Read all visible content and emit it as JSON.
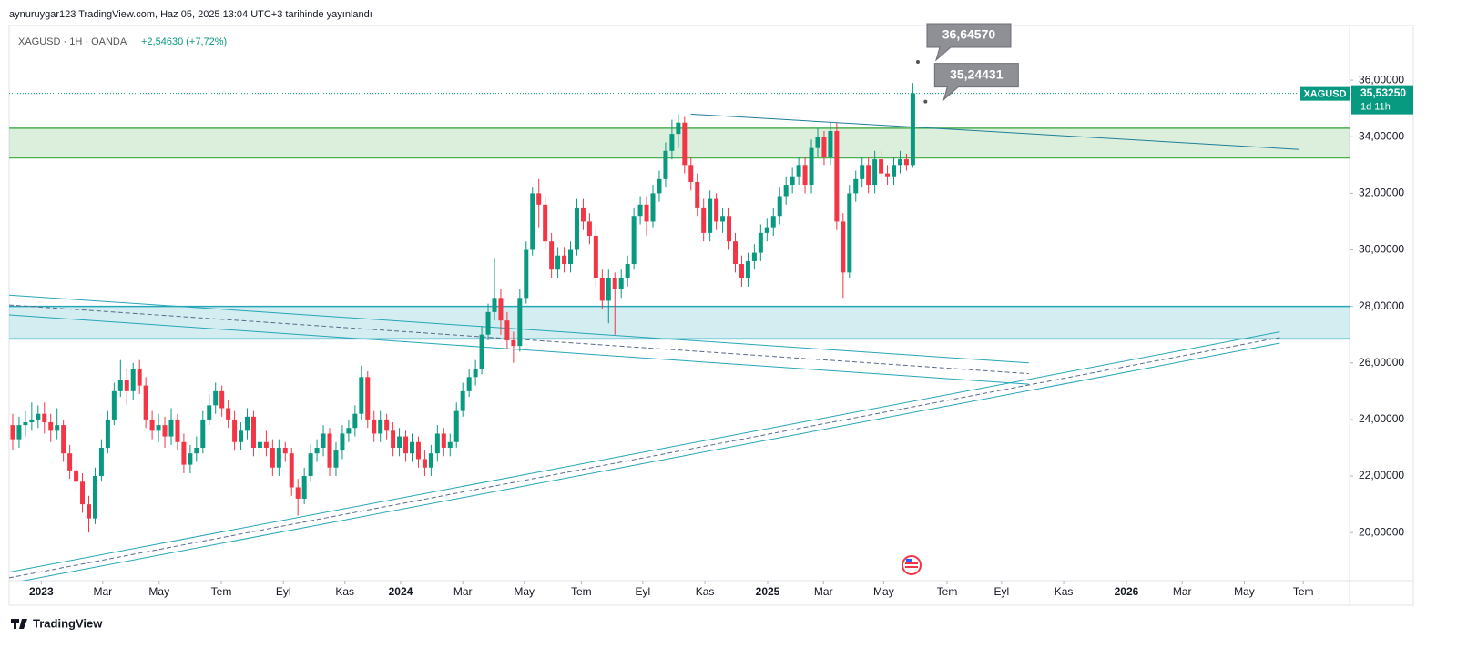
{
  "header": {
    "text": "aynuruygar123 TradingView.com, Haz 05, 2025 13:04 UTC+3 tarihinde yayınlandı"
  },
  "chart_data": {
    "type": "candlestick",
    "symbol": "XAGUSD · 1H · OANDA",
    "change": "+2,54630 (+7,72%)",
    "up_color": "#089981",
    "down_color": "#f23645",
    "candles": [
      [
        23.8,
        24.2,
        22.9,
        23.3
      ],
      [
        23.3,
        24.1,
        23.0,
        23.8
      ],
      [
        23.8,
        24.3,
        23.4,
        23.9
      ],
      [
        23.9,
        24.6,
        23.6,
        24.0
      ],
      [
        24.0,
        24.5,
        23.7,
        24.2
      ],
      [
        24.2,
        24.6,
        23.5,
        23.9
      ],
      [
        23.9,
        24.2,
        23.2,
        23.6
      ],
      [
        23.6,
        24.4,
        23.3,
        23.8
      ],
      [
        23.8,
        24.0,
        22.5,
        22.8
      ],
      [
        22.8,
        23.1,
        21.9,
        22.2
      ],
      [
        22.2,
        22.5,
        21.5,
        21.8
      ],
      [
        21.8,
        22.1,
        20.7,
        21.0
      ],
      [
        21.0,
        21.3,
        20.0,
        20.5
      ],
      [
        20.5,
        22.3,
        20.3,
        22.0
      ],
      [
        22.0,
        23.3,
        21.8,
        23.0
      ],
      [
        23.0,
        24.3,
        22.8,
        24.0
      ],
      [
        24.0,
        25.3,
        23.8,
        25.0
      ],
      [
        25.0,
        26.1,
        24.8,
        25.4
      ],
      [
        25.4,
        25.8,
        24.5,
        25.0
      ],
      [
        25.0,
        26.0,
        24.7,
        25.8
      ],
      [
        25.8,
        26.1,
        24.9,
        25.2
      ],
      [
        25.2,
        25.5,
        23.7,
        24.0
      ],
      [
        24.0,
        24.3,
        23.3,
        23.6
      ],
      [
        23.6,
        24.2,
        23.2,
        23.8
      ],
      [
        23.8,
        24.1,
        23.0,
        23.4
      ],
      [
        23.4,
        24.4,
        23.1,
        24.0
      ],
      [
        24.0,
        24.2,
        22.9,
        23.2
      ],
      [
        23.2,
        23.5,
        22.1,
        22.4
      ],
      [
        22.4,
        23.1,
        22.1,
        22.8
      ],
      [
        22.8,
        23.4,
        22.5,
        23.0
      ],
      [
        23.0,
        24.3,
        22.8,
        24.0
      ],
      [
        24.0,
        24.9,
        23.8,
        24.5
      ],
      [
        24.5,
        25.3,
        24.2,
        25.0
      ],
      [
        25.0,
        25.2,
        24.1,
        24.4
      ],
      [
        24.4,
        24.7,
        23.7,
        24.0
      ],
      [
        24.0,
        24.3,
        22.9,
        23.2
      ],
      [
        23.2,
        23.9,
        22.9,
        23.6
      ],
      [
        23.6,
        24.4,
        23.3,
        24.1
      ],
      [
        24.1,
        24.3,
        22.7,
        23.0
      ],
      [
        23.0,
        23.5,
        22.7,
        23.2
      ],
      [
        23.2,
        23.6,
        22.7,
        23.0
      ],
      [
        23.0,
        23.3,
        22.0,
        22.3
      ],
      [
        22.3,
        23.3,
        22.0,
        23.0
      ],
      [
        23.0,
        23.2,
        22.5,
        22.8
      ],
      [
        22.8,
        23.0,
        21.3,
        21.6
      ],
      [
        21.6,
        21.9,
        20.6,
        21.2
      ],
      [
        21.2,
        22.3,
        21.0,
        22.0
      ],
      [
        22.0,
        23.1,
        21.8,
        22.8
      ],
      [
        22.8,
        23.3,
        22.5,
        23.0
      ],
      [
        23.0,
        23.8,
        22.7,
        23.5
      ],
      [
        23.5,
        23.7,
        22.0,
        22.3
      ],
      [
        22.3,
        23.2,
        22.0,
        22.9
      ],
      [
        22.9,
        23.8,
        22.6,
        23.5
      ],
      [
        23.5,
        24.0,
        23.2,
        23.7
      ],
      [
        23.7,
        24.5,
        23.4,
        24.2
      ],
      [
        24.2,
        25.9,
        24.0,
        25.5
      ],
      [
        25.5,
        25.7,
        23.7,
        24.0
      ],
      [
        24.0,
        24.3,
        23.2,
        23.5
      ],
      [
        23.5,
        24.3,
        23.2,
        24.0
      ],
      [
        24.0,
        24.2,
        23.3,
        23.6
      ],
      [
        23.6,
        23.9,
        22.7,
        23.0
      ],
      [
        23.0,
        23.7,
        22.7,
        23.4
      ],
      [
        23.4,
        23.6,
        22.5,
        22.8
      ],
      [
        22.8,
        23.5,
        22.5,
        23.2
      ],
      [
        23.2,
        23.4,
        22.3,
        22.6
      ],
      [
        22.6,
        22.9,
        22.0,
        22.3
      ],
      [
        22.3,
        23.1,
        22.0,
        22.8
      ],
      [
        22.8,
        23.8,
        22.5,
        23.5
      ],
      [
        23.5,
        23.7,
        22.7,
        23.0
      ],
      [
        23.0,
        23.5,
        22.7,
        23.2
      ],
      [
        23.2,
        24.6,
        23.0,
        24.3
      ],
      [
        24.3,
        25.3,
        24.1,
        25.0
      ],
      [
        25.0,
        25.8,
        24.8,
        25.5
      ],
      [
        25.5,
        26.1,
        25.2,
        25.8
      ],
      [
        25.8,
        27.3,
        25.6,
        27.0
      ],
      [
        27.0,
        28.1,
        26.8,
        27.8
      ],
      [
        27.8,
        29.7,
        27.5,
        28.3
      ],
      [
        28.3,
        28.6,
        27.0,
        27.5
      ],
      [
        27.5,
        27.8,
        26.5,
        26.8
      ],
      [
        26.8,
        27.1,
        26.0,
        26.6
      ],
      [
        26.6,
        28.6,
        26.4,
        28.3
      ],
      [
        28.3,
        30.3,
        28.1,
        30.0
      ],
      [
        30.0,
        32.2,
        29.8,
        32.0
      ],
      [
        32.0,
        32.5,
        30.8,
        31.6
      ],
      [
        31.6,
        31.9,
        30.0,
        30.3
      ],
      [
        30.3,
        30.6,
        29.0,
        29.3
      ],
      [
        29.3,
        30.1,
        29.0,
        29.8
      ],
      [
        29.8,
        30.1,
        29.2,
        29.5
      ],
      [
        29.5,
        30.3,
        29.2,
        30.0
      ],
      [
        30.0,
        31.8,
        29.8,
        31.5
      ],
      [
        31.5,
        31.8,
        30.7,
        31.0
      ],
      [
        31.0,
        31.3,
        30.2,
        30.5
      ],
      [
        30.5,
        30.8,
        28.7,
        29.0
      ],
      [
        29.0,
        29.3,
        27.9,
        28.2
      ],
      [
        28.2,
        29.3,
        27.4,
        29.0
      ],
      [
        29.0,
        29.2,
        27.0,
        28.6
      ],
      [
        28.6,
        29.3,
        28.3,
        29.0
      ],
      [
        29.0,
        29.8,
        28.7,
        29.5
      ],
      [
        29.5,
        31.5,
        29.3,
        31.2
      ],
      [
        31.2,
        31.9,
        30.9,
        31.6
      ],
      [
        31.6,
        31.9,
        30.5,
        31.0
      ],
      [
        31.0,
        32.3,
        30.8,
        32.0
      ],
      [
        32.0,
        32.8,
        31.7,
        32.5
      ],
      [
        32.5,
        33.8,
        32.2,
        33.5
      ],
      [
        33.5,
        34.6,
        33.2,
        34.1
      ],
      [
        34.1,
        34.8,
        33.6,
        34.5
      ],
      [
        34.5,
        34.7,
        32.7,
        33.0
      ],
      [
        33.0,
        33.3,
        32.1,
        32.4
      ],
      [
        32.4,
        32.7,
        31.2,
        31.5
      ],
      [
        31.5,
        31.8,
        30.3,
        30.6
      ],
      [
        30.6,
        32.1,
        30.3,
        31.8
      ],
      [
        31.8,
        32.0,
        30.7,
        31.0
      ],
      [
        31.0,
        31.5,
        30.6,
        31.2
      ],
      [
        31.2,
        31.5,
        30.0,
        30.3
      ],
      [
        30.3,
        30.6,
        29.2,
        29.5
      ],
      [
        29.5,
        29.8,
        28.7,
        29.0
      ],
      [
        29.0,
        29.9,
        28.7,
        29.6
      ],
      [
        29.6,
        30.2,
        29.3,
        29.9
      ],
      [
        29.9,
        30.9,
        29.6,
        30.6
      ],
      [
        30.6,
        31.1,
        30.3,
        30.8
      ],
      [
        30.8,
        31.5,
        30.5,
        31.2
      ],
      [
        31.2,
        32.2,
        30.9,
        31.9
      ],
      [
        31.9,
        32.6,
        31.6,
        32.3
      ],
      [
        32.3,
        32.9,
        32.0,
        32.6
      ],
      [
        32.6,
        33.3,
        32.3,
        33.0
      ],
      [
        33.0,
        33.3,
        32.0,
        32.3
      ],
      [
        32.3,
        33.9,
        32.0,
        33.6
      ],
      [
        33.6,
        34.3,
        33.3,
        34.0
      ],
      [
        34.0,
        34.2,
        33.0,
        33.3
      ],
      [
        33.3,
        34.5,
        33.0,
        34.2
      ],
      [
        34.2,
        34.5,
        30.7,
        31.0
      ],
      [
        31.0,
        31.3,
        28.3,
        29.2
      ],
      [
        29.2,
        32.3,
        29.0,
        32.0
      ],
      [
        32.0,
        32.8,
        31.7,
        32.5
      ],
      [
        32.5,
        33.3,
        32.2,
        33.0
      ],
      [
        33.0,
        33.3,
        32.0,
        32.3
      ],
      [
        32.3,
        33.5,
        32.0,
        33.2
      ],
      [
        33.2,
        33.5,
        32.4,
        32.7
      ],
      [
        32.7,
        33.0,
        32.3,
        32.6
      ],
      [
        32.6,
        33.3,
        32.3,
        33.0
      ],
      [
        33.0,
        33.5,
        32.7,
        33.2
      ],
      [
        33.2,
        33.4,
        32.8,
        33.0
      ],
      [
        33.0,
        35.9,
        32.9,
        35.5325
      ]
    ],
    "xlim": [
      -0.57,
      210.9
    ],
    "xticks": [
      {
        "value": 4.5,
        "label": "2023"
      },
      {
        "value": 14.2,
        "label": "Mar"
      },
      {
        "value": 23.1,
        "label": "May"
      },
      {
        "value": 32.9,
        "label": "Tem"
      },
      {
        "value": 42.7,
        "label": "Eyl"
      },
      {
        "value": 52.4,
        "label": "Kas"
      },
      {
        "value": 61.2,
        "label": "2024"
      },
      {
        "value": 71,
        "label": "Mar"
      },
      {
        "value": 80.7,
        "label": "May"
      },
      {
        "value": 89.7,
        "label": "Tem"
      },
      {
        "value": 99.4,
        "label": "Eyl"
      },
      {
        "value": 109.2,
        "label": "Kas"
      },
      {
        "value": 119.1,
        "label": "2025"
      },
      {
        "value": 127.9,
        "label": "Mar"
      },
      {
        "value": 137.4,
        "label": "May"
      },
      {
        "value": 147.4,
        "label": "Tem"
      },
      {
        "value": 156,
        "label": "Eyl"
      },
      {
        "value": 165.8,
        "label": "Kas"
      },
      {
        "value": 175.7,
        "label": "2026"
      },
      {
        "value": 184.5,
        "label": "Mar"
      },
      {
        "value": 194.3,
        "label": "May"
      },
      {
        "value": 203.6,
        "label": "Tem"
      }
    ],
    "ylim": [
      18.3,
      37.87
    ],
    "yticks": [
      {
        "value": 20,
        "label": "20,00000"
      },
      {
        "value": 22,
        "label": "22,00000"
      },
      {
        "value": 24,
        "label": "24,00000"
      },
      {
        "value": 26,
        "label": "26,00000"
      },
      {
        "value": 28,
        "label": "28,00000"
      },
      {
        "value": 30,
        "label": "30,00000"
      },
      {
        "value": 32,
        "label": "32,00000"
      },
      {
        "value": 34,
        "label": "34,00000"
      },
      {
        "value": 36,
        "label": "36,00000"
      }
    ],
    "zones": [
      {
        "low": 33.25,
        "high": 34.3,
        "color": "#4caf50"
      },
      {
        "low": 26.85,
        "high": 28.0,
        "color": "#26a6b8"
      }
    ],
    "lines": [
      {
        "points": [
          [
            107,
            34.8
          ],
          [
            203,
            33.55
          ]
        ],
        "color": "#1f7f9a",
        "dashed": false
      },
      {
        "points": [
          [
            -0.57,
            28.4
          ],
          [
            160.3,
            26.0
          ]
        ],
        "color": "#26a6b8",
        "dashed": false
      },
      {
        "points": [
          [
            -0.57,
            27.7
          ],
          [
            160.3,
            25.25
          ]
        ],
        "color": "#26a6b8",
        "dashed": false
      },
      {
        "points": [
          [
            -0.57,
            28.05
          ],
          [
            160.3,
            25.62
          ]
        ],
        "color": "#5a6a8a",
        "dashed": true
      },
      {
        "points": [
          [
            -0.57,
            18.6
          ],
          [
            199.9,
            27.1
          ]
        ],
        "color": "#26a6b8",
        "dashed": false
      },
      {
        "points": [
          [
            -0.57,
            18.2
          ],
          [
            199.9,
            26.7
          ]
        ],
        "color": "#26a6b8",
        "dashed": false
      },
      {
        "points": [
          [
            -0.57,
            18.4
          ],
          [
            199.9,
            26.9
          ]
        ],
        "color": "#5a6a8a",
        "dashed": true
      }
    ],
    "callouts": [
      {
        "x": 142.8,
        "value": 36.6457,
        "label": "36,64570"
      },
      {
        "x": 144,
        "value": 35.24431,
        "label": "35,24431"
      }
    ],
    "last_price": {
      "value": 35.5325,
      "label": "35,53250",
      "name": "XAGUSD",
      "countdown": "1d 11h",
      "color": "#089981"
    }
  },
  "footer": {
    "text": "TradingView"
  }
}
